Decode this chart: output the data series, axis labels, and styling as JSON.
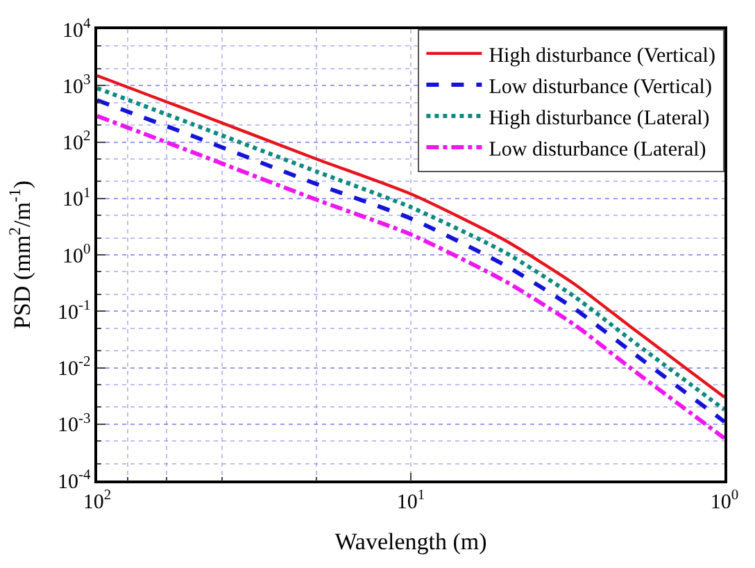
{
  "chart_data": {
    "type": "line",
    "xlabel": "Wavelength (m)",
    "ylabel": "PSD (mm$^{2}$/m$^{-1}$)",
    "log": "xy",
    "grid": true,
    "legend": "top right",
    "x": [
      100,
      50,
      20,
      10,
      5,
      3,
      2,
      1
    ],
    "xlim": [
      100,
      1
    ],
    "xticks": [
      {
        "value": 100,
        "label": "10$^{2}$"
      },
      {
        "value": 10,
        "label": "10$^{1}$"
      },
      {
        "value": 1,
        "label": "10$^{0}$"
      }
    ],
    "ylim": [
      0.0001,
      10000
    ],
    "yticks": [
      {
        "value": 0.0001,
        "label": "10$^{-4}$"
      },
      {
        "value": 0.001,
        "label": "10$^{-3}$"
      },
      {
        "value": 0.01,
        "label": "10$^{-2}$"
      },
      {
        "value": 0.1,
        "label": "10$^{-1}$"
      },
      {
        "value": 1,
        "label": "10$^{0}$"
      },
      {
        "value": 10,
        "label": "10$^{1}$"
      },
      {
        "value": 100,
        "label": "10$^{2}$"
      },
      {
        "value": 1000,
        "label": "10$^{3}$"
      },
      {
        "value": 10000,
        "label": "10$^{4}$"
      }
    ],
    "series": [
      {
        "name": "High disturbance (Vertical)",
        "color": "#e8141c",
        "line_style": "solid",
        "values": [
          1500,
          350,
          50,
          12,
          1.8,
          0.3,
          0.054,
          0.003
        ]
      },
      {
        "name": "Low disturbance (Vertical)",
        "color": "#1414d8",
        "line_style": "dashed",
        "values": [
          550,
          130,
          18,
          4.4,
          0.65,
          0.11,
          0.02,
          0.0011
        ]
      },
      {
        "name": "High disturbance (Lateral)",
        "color": "#0e8a80",
        "line_style": "dotted",
        "values": [
          900,
          210,
          30,
          7,
          1.1,
          0.18,
          0.032,
          0.0018
        ]
      },
      {
        "name": "Low disturbance (Lateral)",
        "color": "#ee18ee",
        "line_style": "dashdot",
        "values": [
          290,
          67,
          9.5,
          2.3,
          0.34,
          0.057,
          0.01,
          0.00056
        ]
      }
    ]
  }
}
